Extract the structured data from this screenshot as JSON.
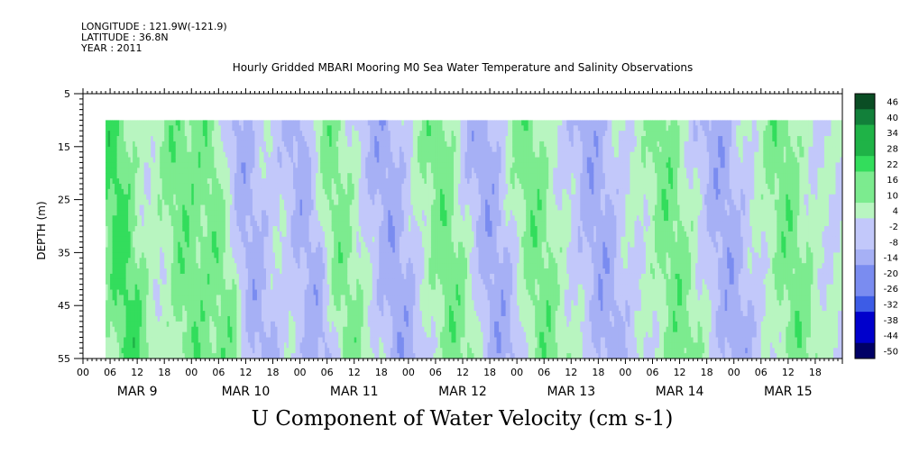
{
  "header": {
    "longitude": "LONGITUDE : 121.9W(-121.9)",
    "latitude": "LATITUDE : 36.8N",
    "year": "YEAR : 2011"
  },
  "chart_data": {
    "type": "heatmap",
    "title": "Hourly Gridded MBARI Mooring M0 Sea Water Temperature and Salinity Observations",
    "bottom_title": "U Component of Water Velocity (cm s-1)",
    "ylabel": "DEPTH (m)",
    "y_ticks": [
      5,
      15,
      25,
      35,
      45,
      55
    ],
    "ylim": [
      55,
      5
    ],
    "y_data_range": [
      10,
      55
    ],
    "x_hour_ticks": [
      "00",
      "06",
      "12",
      "18",
      "00",
      "06",
      "12",
      "18",
      "00",
      "06",
      "12",
      "18",
      "00",
      "06",
      "12",
      "18",
      "00",
      "06",
      "12",
      "18",
      "00",
      "06",
      "12",
      "18",
      "00",
      "06",
      "12",
      "18"
    ],
    "x_day_labels": [
      "MAR  9",
      "MAR 10",
      "MAR 11",
      "MAR 12",
      "MAR 13",
      "MAR 14",
      "MAR 15"
    ],
    "x_range_hours": [
      0,
      168
    ],
    "data_start_hour": 5,
    "colorbar_levels": [
      "46",
      "40",
      "34",
      "28",
      "22",
      "16",
      "10",
      "4",
      "-2",
      "-8",
      "-14",
      "-20",
      "-26",
      "-32",
      "-38",
      "-44",
      "-50"
    ],
    "colorscale": {
      "negative": [
        "#000066",
        "#0000cc",
        "#3d5ce6",
        "#7a8cf0",
        "#a6b0f5",
        "#c2c8fa"
      ],
      "positive": [
        "#b8f5c0",
        "#7ceb8f",
        "#33dd5c",
        "#1fb347",
        "#12803a",
        "#0a4d24"
      ]
    },
    "dominant_columns": [
      {
        "hour": 8,
        "sign": "positive",
        "note": "strong"
      },
      {
        "hour": 22,
        "sign": "positive"
      },
      {
        "hour": 30,
        "sign": "positive"
      },
      {
        "hour": 36,
        "sign": "negative"
      },
      {
        "hour": 50,
        "sign": "negative"
      },
      {
        "hour": 56,
        "sign": "positive"
      },
      {
        "hour": 68,
        "sign": "negative"
      },
      {
        "hour": 80,
        "sign": "positive"
      },
      {
        "hour": 90,
        "sign": "negative"
      },
      {
        "hour": 100,
        "sign": "positive"
      },
      {
        "hour": 114,
        "sign": "negative"
      },
      {
        "hour": 130,
        "sign": "positive"
      },
      {
        "hour": 142,
        "sign": "negative"
      },
      {
        "hour": 156,
        "sign": "positive"
      }
    ]
  }
}
